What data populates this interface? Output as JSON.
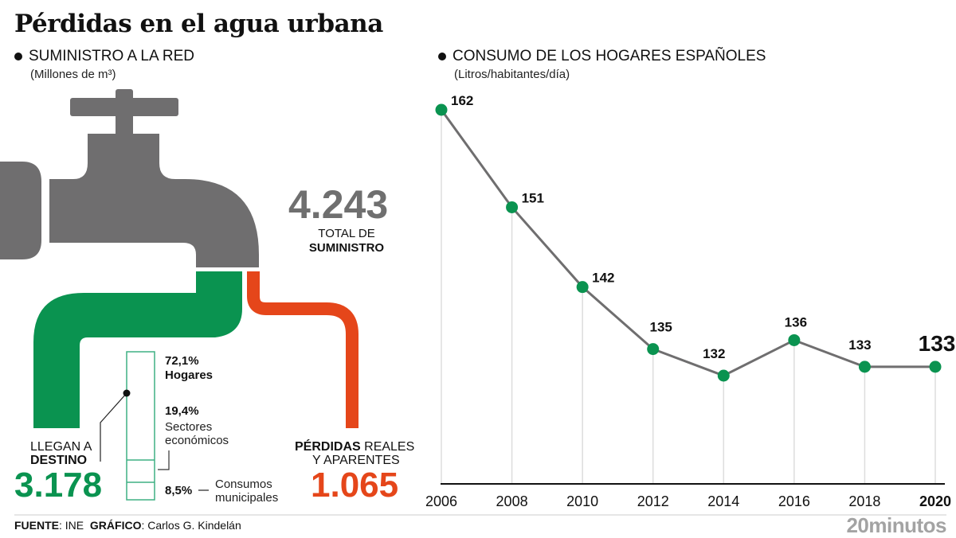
{
  "title": "Pérdidas en el agua urbana",
  "supply": {
    "heading": "SUMINISTRO A LA RED",
    "unit": "(Millones de m³)",
    "total_value": "4.243",
    "total_label_line1": "TOTAL DE",
    "total_label_line2": "SUMINISTRO",
    "reach": {
      "label_line1": "LLEGAN A",
      "label_line2": "DESTINO",
      "value": "3.178",
      "color": "#0a9350"
    },
    "losses": {
      "label_bold": "PÉRDIDAS",
      "label_rest": " REALES",
      "label_line2": "Y APARENTES",
      "value": "1.065",
      "color": "#e5461a"
    },
    "breakdown": [
      {
        "pct": "72,1%",
        "label": "Hogares",
        "share": 72.1
      },
      {
        "pct": "19,4%",
        "label_line1": "Sectores",
        "label_line2": "económicos",
        "share": 19.4
      },
      {
        "pct": "8,5%",
        "label_line1": "Consumos",
        "label_line2": "municipales",
        "share": 8.5
      }
    ],
    "faucet_color": "#6f6e6f"
  },
  "consumption": {
    "heading": "CONSUMO DE LOS HOGARES ESPAÑOLES",
    "unit": "(Litros/habitantes/día)"
  },
  "chart_data": {
    "type": "line",
    "title": "CONSUMO DE LOS HOGARES ESPAÑOLES",
    "subtitle": "(Litros/habitantes/día)",
    "x": [
      "2006",
      "2008",
      "2010",
      "2012",
      "2014",
      "2016",
      "2018",
      "2020"
    ],
    "series": [
      {
        "name": "Consumo de los hogares",
        "values": [
          162,
          151,
          142,
          135,
          132,
          136,
          133,
          133
        ],
        "color": "#0a9350"
      }
    ],
    "xlabel": "",
    "ylabel": "Litros/habitantes/día",
    "ylim": [
      120,
      165
    ],
    "grid": "vertical drop lines",
    "highlight_last": true
  },
  "footer": {
    "source_label": "FUENTE",
    "source_value": ": INE",
    "graphic_label": "GRÁFICO",
    "graphic_value": ": Carlos G. Kindelán",
    "brand": "20minutos"
  }
}
